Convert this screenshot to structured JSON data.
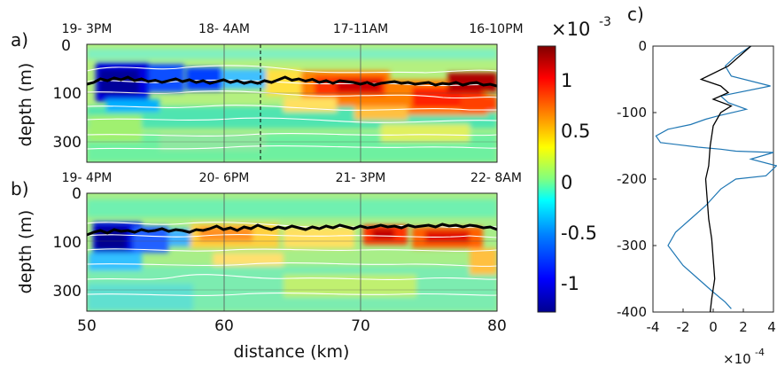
{
  "panels": {
    "a": {
      "label": "a)",
      "times": [
        "19- 3PM",
        "18- 4AM",
        "17-11AM",
        "16-10PM"
      ],
      "ylabel": "depth (m)",
      "yticks": [
        "0",
        "100",
        "300"
      ],
      "mixed_layer_depth_m": [
        64,
        60,
        52,
        56,
        50,
        54,
        48,
        56,
        52,
        58,
        55,
        60,
        56,
        52,
        58,
        54,
        60,
        56,
        62,
        58,
        54,
        60,
        56,
        62,
        58,
        62,
        56,
        60,
        54,
        48,
        55,
        52,
        57,
        53,
        60,
        56,
        62,
        56,
        58,
        60,
        64,
        60,
        66,
        62,
        60,
        58,
        62,
        60,
        64,
        62,
        60,
        66,
        62,
        64,
        60,
        66,
        62,
        60,
        66,
        64,
        68
      ]
    },
    "b": {
      "label": "b)",
      "times": [
        "19- 4PM",
        "20- 6PM",
        "21- 3PM",
        "22- 8AM"
      ],
      "ylabel": "depth (m)",
      "yticks": [
        "0",
        "100",
        "300"
      ],
      "mixed_layer_depth_m": [
        68,
        62,
        58,
        64,
        56,
        60,
        58,
        62,
        56,
        60,
        58,
        54,
        60,
        56,
        58,
        62,
        56,
        58,
        54,
        48,
        56,
        52,
        58,
        50,
        54,
        46,
        52,
        56,
        50,
        54,
        48,
        52,
        56,
        50,
        54,
        48,
        52,
        46,
        50,
        54,
        48,
        52,
        50,
        46,
        50,
        48,
        52,
        46,
        50,
        48,
        46,
        50,
        44,
        48,
        46,
        50,
        46,
        48,
        52,
        50,
        56
      ]
    },
    "c": {
      "label": "c)",
      "yticks": [
        "0",
        "-100",
        "-200",
        "-300",
        "-400"
      ],
      "xticks": [
        "-4",
        "-2",
        "0",
        "2",
        "4"
      ],
      "exponent": "×10",
      "exponent_power": "-4"
    }
  },
  "xaxis": {
    "label": "distance (km)",
    "ticks": [
      "50",
      "60",
      "70",
      "80"
    ]
  },
  "colorbar": {
    "exponent": "×10",
    "exponent_power": "-3",
    "ticks": [
      "1",
      "0.5",
      "0",
      "-0.5",
      "-1"
    ]
  },
  "colors": {
    "colormap": [
      "#00008f",
      "#0000ff",
      "#0080ff",
      "#00ffff",
      "#80ff80",
      "#ffff00",
      "#ff8000",
      "#ff0000",
      "#800000"
    ],
    "profile_blue": "#1f77b4",
    "profile_black": "#000000"
  },
  "chart_data": [
    {
      "type": "heatmap",
      "panel": "a",
      "x_unit": "distance (km)",
      "xlim": [
        50,
        80
      ],
      "y_unit": "depth (m)",
      "color_range": [
        -0.0013,
        0.0013
      ],
      "cells": [
        {
          "x": [
            50,
            56
          ],
          "depth": [
            80,
            130
          ],
          "value": -0.0012
        },
        {
          "x": [
            56,
            59
          ],
          "depth": [
            85,
            120
          ],
          "value": -0.0008
        },
        {
          "x": [
            65,
            73
          ],
          "depth": [
            80,
            130
          ],
          "value": 0.001
        },
        {
          "x": [
            73,
            80
          ],
          "depth": [
            90,
            140
          ],
          "value": 0.0008
        },
        {
          "x": [
            77,
            80
          ],
          "depth": [
            75,
            100
          ],
          "value": 0.0013
        },
        {
          "x": [
            52,
            56
          ],
          "depth": [
            200,
            300
          ],
          "value": 0.0003
        }
      ]
    },
    {
      "type": "heatmap",
      "panel": "b",
      "x_unit": "distance (km)",
      "xlim": [
        50,
        80
      ],
      "y_unit": "depth (m)",
      "color_range": [
        -0.0013,
        0.0013
      ],
      "cells": [
        {
          "x": [
            50,
            54
          ],
          "depth": [
            75,
            140
          ],
          "value": -0.0013
        },
        {
          "x": [
            54,
            57
          ],
          "depth": [
            80,
            110
          ],
          "value": -0.0006
        },
        {
          "x": [
            60,
            67
          ],
          "depth": [
            80,
            110
          ],
          "value": 0.0005
        },
        {
          "x": [
            70,
            73
          ],
          "depth": [
            75,
            95
          ],
          "value": 0.0012
        },
        {
          "x": [
            74,
            79
          ],
          "depth": [
            80,
            100
          ],
          "value": 0.001
        },
        {
          "x": [
            78,
            80
          ],
          "depth": [
            100,
            130
          ],
          "value": 0.0004
        }
      ]
    },
    {
      "type": "line",
      "panel": "c",
      "x_scale": 0.0001,
      "xlim": [
        -4,
        4
      ],
      "ylim": [
        -400,
        0
      ],
      "series": [
        {
          "color": "#1f77b4",
          "x": [
            2.5,
            1.5,
            0.8,
            1.2,
            3.8,
            0.5,
            1.0,
            2.2,
            0.3,
            -0.5,
            -1.5,
            -3.0,
            -3.8,
            -3.5,
            -1.0,
            0.5,
            1.5,
            4.0,
            2.5,
            4.2,
            3.5,
            1.5,
            0.5,
            -0.5,
            -1.5,
            -2.5,
            -3.0,
            -2.0,
            -1.0,
            0.0,
            0.8,
            1.2
          ],
          "y": [
            0,
            -15,
            -30,
            -45,
            -60,
            -75,
            -85,
            -95,
            -105,
            -110,
            -118,
            -125,
            -135,
            -145,
            -152,
            -155,
            -158,
            -160,
            -170,
            -180,
            -195,
            -200,
            -215,
            -240,
            -260,
            -280,
            -300,
            -330,
            -350,
            -370,
            -385,
            -395
          ]
        },
        {
          "color": "#000000",
          "x": [
            2.5,
            2.0,
            1.0,
            -0.8,
            0.5,
            1.0,
            0.0,
            1.2,
            0.5,
            0.0,
            -0.2,
            -0.3,
            -0.5,
            -0.4,
            -0.3,
            -0.1,
            0.0,
            0.1,
            -0.1,
            -0.2
          ],
          "y": [
            0,
            -10,
            -30,
            -50,
            -60,
            -70,
            -80,
            -90,
            -100,
            -120,
            -150,
            -180,
            -200,
            -230,
            -260,
            -290,
            -320,
            -350,
            -380,
            -400
          ]
        }
      ]
    }
  ]
}
